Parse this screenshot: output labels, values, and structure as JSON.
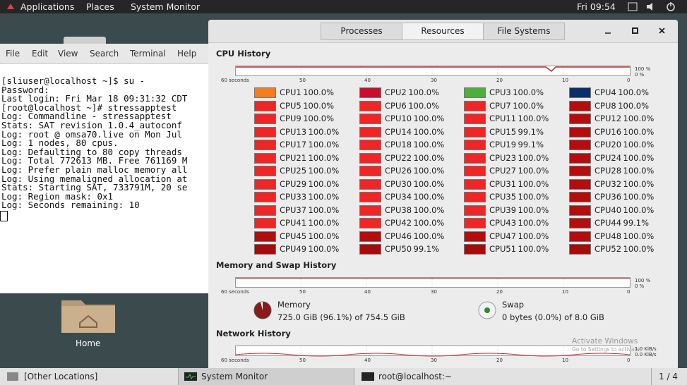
{
  "topbar": {
    "applications": "Applications",
    "places": "Places",
    "app": "System Monitor",
    "clock": "Fri 09:54"
  },
  "terminal": {
    "menu": [
      "File",
      "Edit",
      "View",
      "Search",
      "Terminal",
      "Help"
    ],
    "lines": [
      "[sliuser@localhost ~]$ su -",
      "Password:",
      "Last login: Fri Mar 18 09:31:32 CDT",
      "[root@localhost ~]# stressapptest",
      "Log: Commandline - stressapptest",
      "Stats: SAT revision 1.0.4_autoconf",
      "Log: root @ omsa70.live on Mon Jul",
      "Log: 1 nodes, 80 cpus.",
      "Log: Defaulting to 80 copy threads",
      "Log: Total 772613 MB. Free 761169 M",
      "Log: Prefer plain malloc memory all",
      "Log: Using memaligned allocation at",
      "Stats: Starting SAT, 733791M, 20 se",
      "Log: Region mask: 0x1",
      "Log: Seconds remaining: 10"
    ]
  },
  "desktop": {
    "home": "Home"
  },
  "sysmon": {
    "tabs": [
      "Processes",
      "Resources",
      "File Systems"
    ],
    "cpu_history": {
      "title": "CPU History",
      "axis": [
        "60 seconds",
        "50",
        "40",
        "30",
        "20",
        "10",
        "0"
      ],
      "top": "100 %",
      "bottom": "0 %",
      "cpus": [
        {
          "name": "CPU1",
          "value": "100.0%",
          "color": "#f57c1f"
        },
        {
          "name": "CPU2",
          "value": "100.0%",
          "color": "#c8102e"
        },
        {
          "name": "CPU3",
          "value": "100.0%",
          "color": "#4caf3a"
        },
        {
          "name": "CPU4",
          "value": "100.0%",
          "color": "#0b2f6b"
        },
        {
          "name": "CPU5",
          "value": "100.0%",
          "color": "#f02525"
        },
        {
          "name": "CPU6",
          "value": "100.0%",
          "color": "#f02525"
        },
        {
          "name": "CPU7",
          "value": "100.0%",
          "color": "#f02525"
        },
        {
          "name": "CPU8",
          "value": "100.0%",
          "color": "#b30d0d"
        },
        {
          "name": "CPU9",
          "value": "100.0%",
          "color": "#f02525"
        },
        {
          "name": "CPU10",
          "value": "100.0%",
          "color": "#f02525"
        },
        {
          "name": "CPU11",
          "value": "100.0%",
          "color": "#f02525"
        },
        {
          "name": "CPU12",
          "value": "100.0%",
          "color": "#b30d0d"
        },
        {
          "name": "CPU13",
          "value": "100.0%",
          "color": "#f02525"
        },
        {
          "name": "CPU14",
          "value": "100.0%",
          "color": "#f02525"
        },
        {
          "name": "CPU15",
          "value": "99.1%",
          "color": "#f02525"
        },
        {
          "name": "CPU16",
          "value": "100.0%",
          "color": "#b30d0d"
        },
        {
          "name": "CPU17",
          "value": "100.0%",
          "color": "#f02525"
        },
        {
          "name": "CPU18",
          "value": "100.0%",
          "color": "#f02525"
        },
        {
          "name": "CPU19",
          "value": "99.1%",
          "color": "#f02525"
        },
        {
          "name": "CPU20",
          "value": "100.0%",
          "color": "#b30d0d"
        },
        {
          "name": "CPU21",
          "value": "100.0%",
          "color": "#f02525"
        },
        {
          "name": "CPU22",
          "value": "100.0%",
          "color": "#f02525"
        },
        {
          "name": "CPU23",
          "value": "100.0%",
          "color": "#f02525"
        },
        {
          "name": "CPU24",
          "value": "100.0%",
          "color": "#b30d0d"
        },
        {
          "name": "CPU25",
          "value": "100.0%",
          "color": "#f02525"
        },
        {
          "name": "CPU26",
          "value": "100.0%",
          "color": "#f02525"
        },
        {
          "name": "CPU27",
          "value": "100.0%",
          "color": "#f02525"
        },
        {
          "name": "CPU28",
          "value": "100.0%",
          "color": "#b30d0d"
        },
        {
          "name": "CPU29",
          "value": "100.0%",
          "color": "#f02525"
        },
        {
          "name": "CPU30",
          "value": "100.0%",
          "color": "#f02525"
        },
        {
          "name": "CPU31",
          "value": "100.0%",
          "color": "#f02525"
        },
        {
          "name": "CPU32",
          "value": "100.0%",
          "color": "#b30d0d"
        },
        {
          "name": "CPU33",
          "value": "100.0%",
          "color": "#f02525"
        },
        {
          "name": "CPU34",
          "value": "100.0%",
          "color": "#f02525"
        },
        {
          "name": "CPU35",
          "value": "100.0%",
          "color": "#f02525"
        },
        {
          "name": "CPU36",
          "value": "100.0%",
          "color": "#b30d0d"
        },
        {
          "name": "CPU37",
          "value": "100.0%",
          "color": "#f02525"
        },
        {
          "name": "CPU38",
          "value": "100.0%",
          "color": "#f02525"
        },
        {
          "name": "CPU39",
          "value": "100.0%",
          "color": "#f02525"
        },
        {
          "name": "CPU40",
          "value": "100.0%",
          "color": "#b30d0d"
        },
        {
          "name": "CPU41",
          "value": "100.0%",
          "color": "#f02525"
        },
        {
          "name": "CPU42",
          "value": "100.0%",
          "color": "#f02525"
        },
        {
          "name": "CPU43",
          "value": "100.0%",
          "color": "#f02525"
        },
        {
          "name": "CPU44",
          "value": "99.1%",
          "color": "#b30d0d"
        },
        {
          "name": "CPU45",
          "value": "100.0%",
          "color": "#b30d0d"
        },
        {
          "name": "CPU46",
          "value": "100.0%",
          "color": "#b30d0d"
        },
        {
          "name": "CPU47",
          "value": "100.0%",
          "color": "#b30d0d"
        },
        {
          "name": "CPU48",
          "value": "100.0%",
          "color": "#b30d0d"
        },
        {
          "name": "CPU49",
          "value": "100.0%",
          "color": "#a50b0b"
        },
        {
          "name": "CPU50",
          "value": "99.1%",
          "color": "#a50b0b"
        },
        {
          "name": "CPU51",
          "value": "100.0%",
          "color": "#a50b0b"
        },
        {
          "name": "CPU52",
          "value": "100.0%",
          "color": "#a50b0b"
        }
      ]
    },
    "memory_history": {
      "title": "Memory and Swap History",
      "axis": [
        "60 seconds",
        "50",
        "40",
        "30",
        "20",
        "10",
        "0"
      ],
      "top": "100 %",
      "bottom": "0 %",
      "memory": {
        "label": "Memory",
        "detail": "725.0 GiB (96.1%) of 754.5 GiB"
      },
      "swap": {
        "label": "Swap",
        "detail": "0 bytes (0.0%) of 8.0 GiB"
      }
    },
    "network_history": {
      "title": "Network History",
      "axis": [
        "60 seconds",
        "50",
        "40",
        "30",
        "20",
        "10",
        "0"
      ],
      "top": "1.0 KiB/s",
      "bottom": "0.0 KiB/s"
    }
  },
  "watermark": {
    "title": "Activate Windows",
    "subtitle": "Go to Settings to activate"
  },
  "taskbar": {
    "items": [
      "[Other Locations]",
      "System Monitor",
      "root@localhost:~"
    ],
    "pager": "1 / 4"
  }
}
